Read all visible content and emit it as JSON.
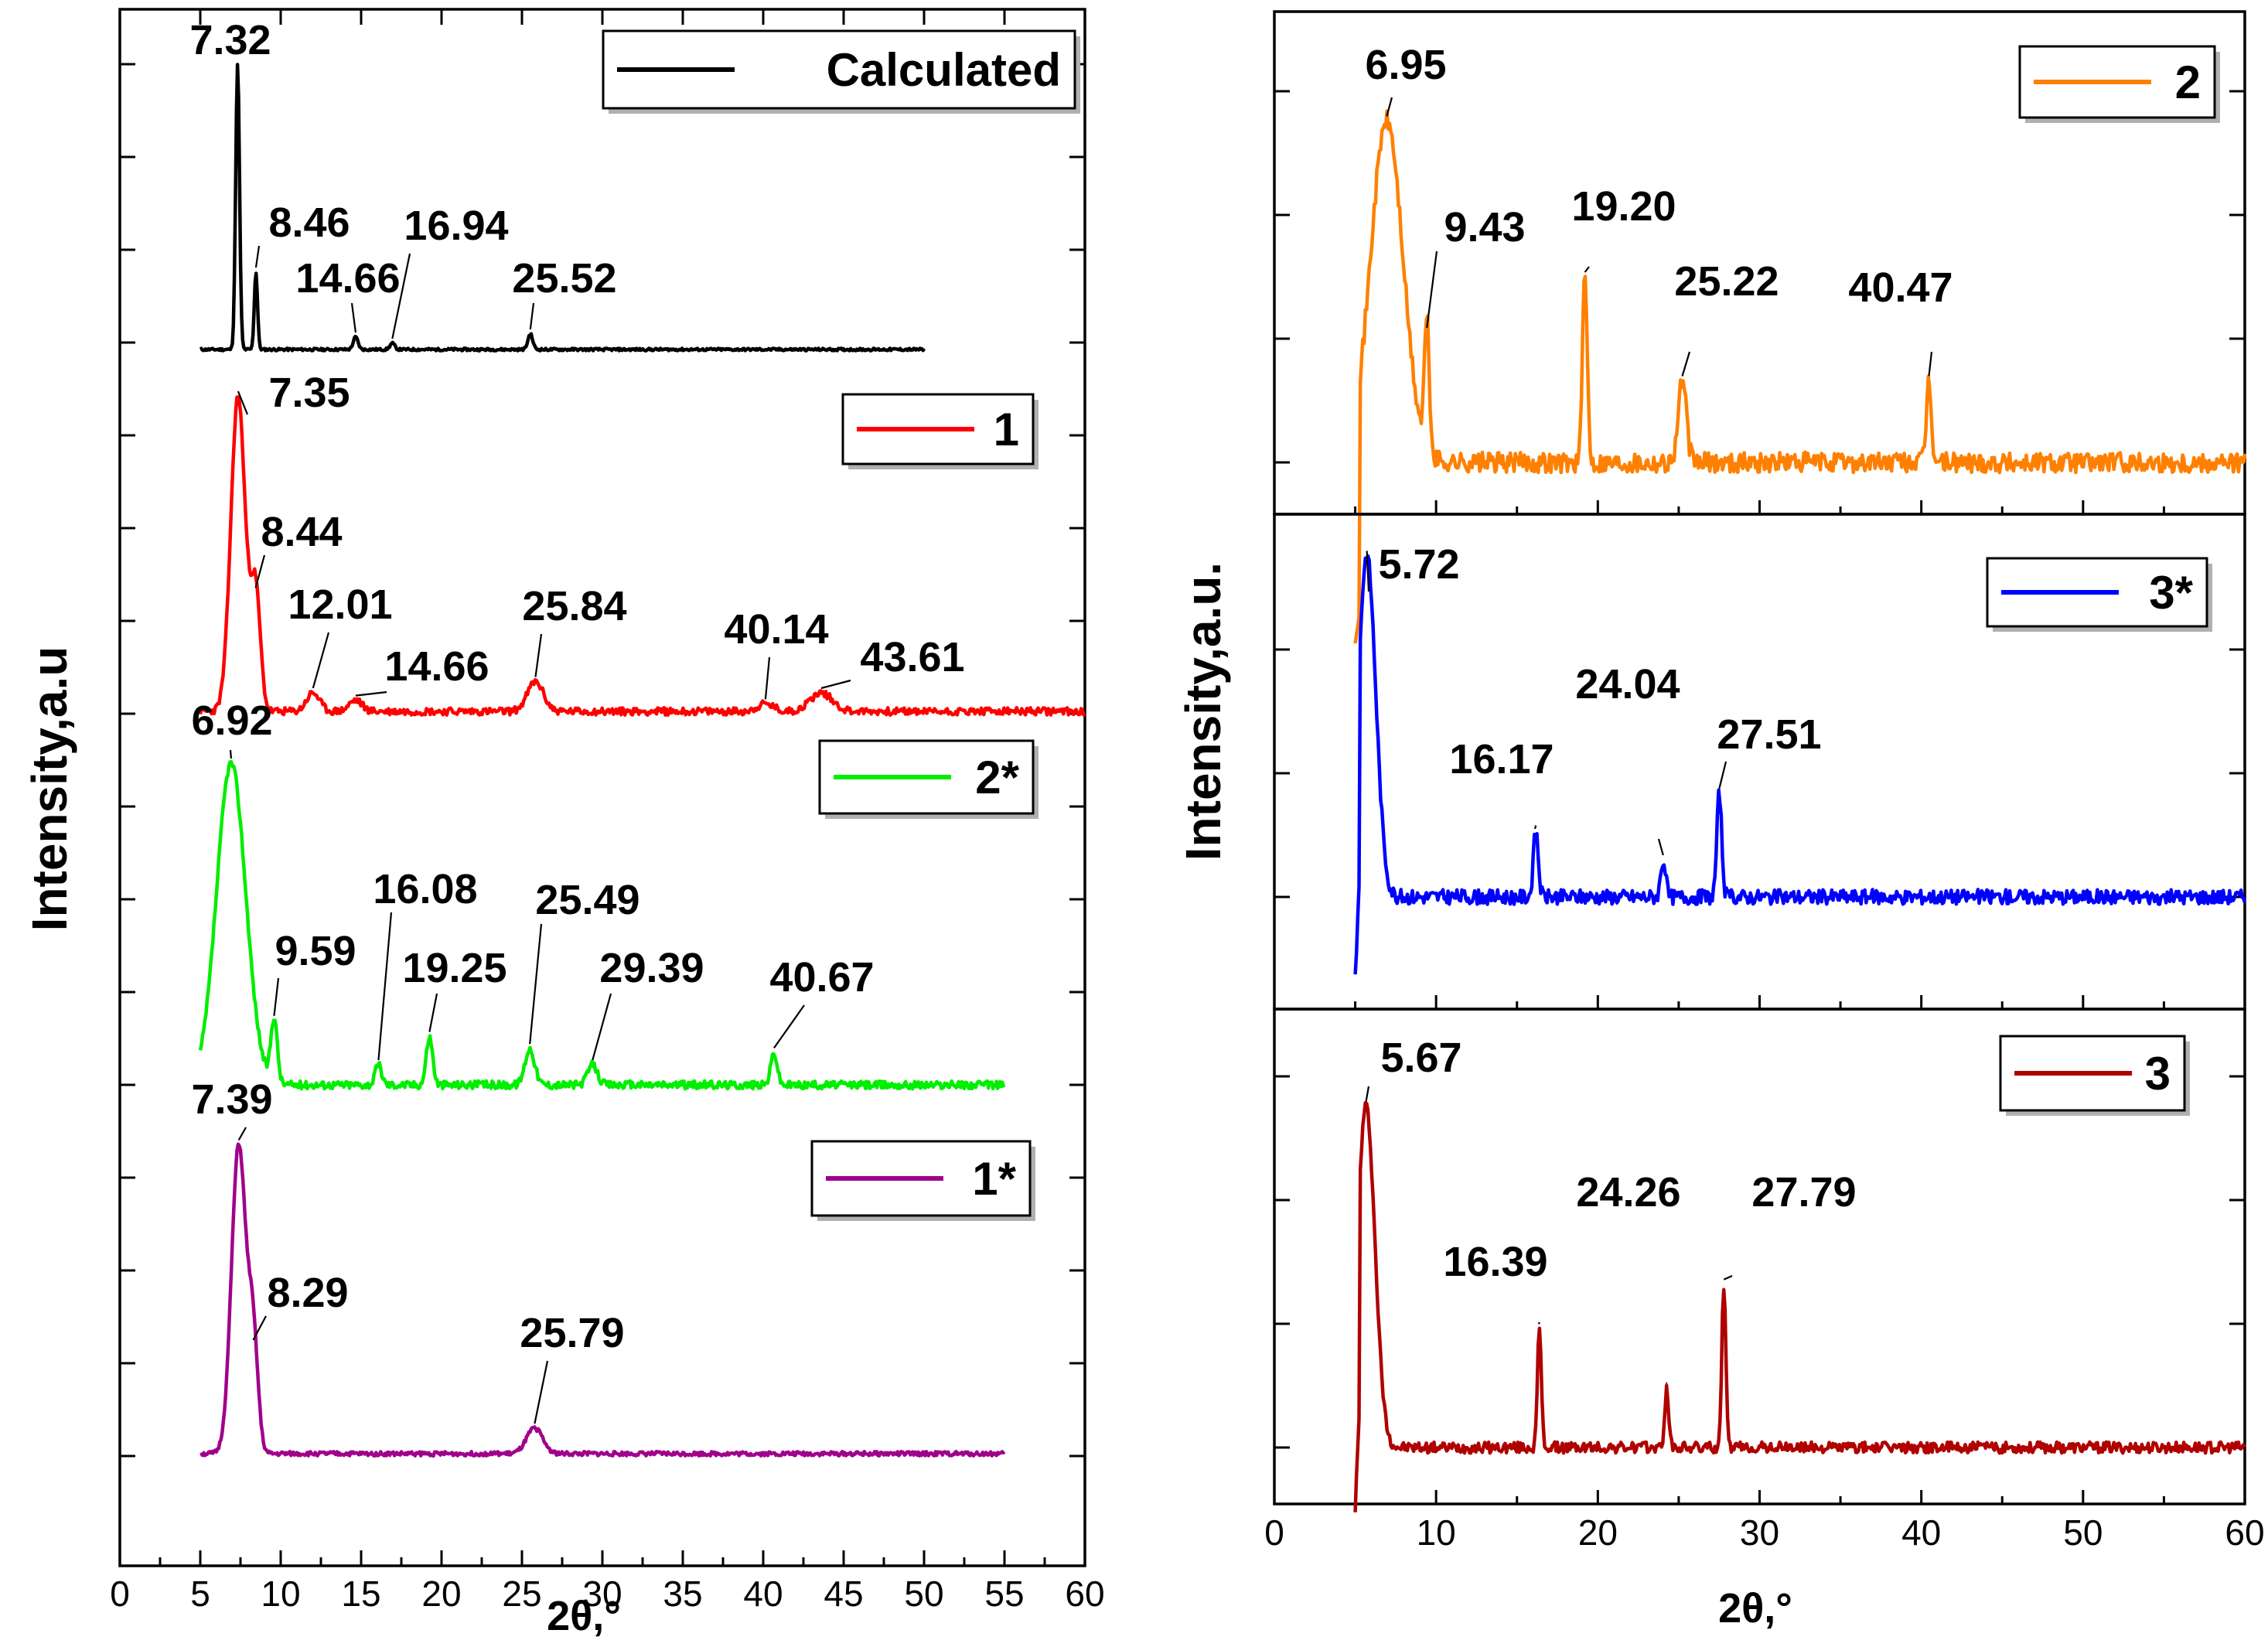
{
  "chart_data": [
    {
      "type": "line",
      "panel": "left",
      "xlabel": "2θ,°",
      "ylabel": "Intensity,a.u",
      "xlim": [
        0,
        60
      ],
      "xticks": [
        0,
        5,
        10,
        15,
        20,
        25,
        30,
        35,
        40,
        45,
        50,
        55,
        60
      ],
      "series": [
        {
          "name": "Calculated",
          "color": "#000000",
          "x_range": [
            5,
            50
          ],
          "baseline_fraction": 0.76,
          "peaks": [
            {
              "x": 7.32,
              "label": "7.32",
              "height": 0.92,
              "width": 0.12
            },
            {
              "x": 8.46,
              "label": "8.46",
              "height": 0.25,
              "width": 0.1
            },
            {
              "x": 14.66,
              "label": "14.66",
              "height": 0.04,
              "width": 0.15
            },
            {
              "x": 16.94,
              "label": "16.94",
              "height": 0.02,
              "width": 0.15
            },
            {
              "x": 25.52,
              "label": "25.52",
              "height": 0.05,
              "width": 0.15
            }
          ]
        },
        {
          "name": "1",
          "color": "#ff0000",
          "x_range": [
            5,
            60
          ],
          "baseline_fraction": 0.56,
          "peaks": [
            {
              "x": 7.35,
              "label": "7.35",
              "height": 0.85,
              "width": 0.45
            },
            {
              "x": 8.44,
              "label": "8.44",
              "height": 0.32,
              "width": 0.3
            },
            {
              "x": 12.01,
              "label": "12.01",
              "height": 0.05,
              "width": 0.4
            },
            {
              "x": 14.66,
              "label": "14.66",
              "height": 0.03,
              "width": 0.4
            },
            {
              "x": 25.84,
              "label": "25.84",
              "height": 0.08,
              "width": 0.5
            },
            {
              "x": 40.14,
              "label": "40.14",
              "height": 0.02,
              "width": 0.5
            },
            {
              "x": 43.61,
              "label": "43.61",
              "height": 0.05,
              "width": 0.7
            }
          ]
        },
        {
          "name": "2*",
          "color": "#00ee00",
          "x_range": [
            5,
            55
          ],
          "baseline_fraction": 0.35,
          "peaks": [
            {
              "x": 6.92,
              "label": "6.92",
              "height": 0.8,
              "width": 0.9
            },
            {
              "x": 9.59,
              "label": "9.59",
              "height": 0.16,
              "width": 0.2
            },
            {
              "x": 16.08,
              "label": "16.08",
              "height": 0.05,
              "width": 0.2
            },
            {
              "x": 19.25,
              "label": "19.25",
              "height": 0.12,
              "width": 0.2
            },
            {
              "x": 25.49,
              "label": "25.49",
              "height": 0.09,
              "width": 0.3
            },
            {
              "x": 29.39,
              "label": "29.39",
              "height": 0.05,
              "width": 0.3
            },
            {
              "x": 40.67,
              "label": "40.67",
              "height": 0.08,
              "width": 0.2
            }
          ]
        },
        {
          "name": "1*",
          "color": "#a0008c",
          "x_range": [
            5,
            55
          ],
          "baseline_fraction": 0.15,
          "peaks": [
            {
              "x": 7.39,
              "label": "7.39",
              "height": 0.85,
              "width": 0.45
            },
            {
              "x": 8.29,
              "label": "8.29",
              "height": 0.3,
              "width": 0.3
            },
            {
              "x": 25.79,
              "label": "25.79",
              "height": 0.07,
              "width": 0.5
            }
          ]
        }
      ]
    },
    {
      "type": "line",
      "panel": "right-top",
      "xlim": [
        0,
        60
      ],
      "ylabel": "Intensity,a.u.",
      "series": [
        {
          "name": "2",
          "color": "#ff8000",
          "x_range": [
            5,
            60
          ],
          "peaks": [
            {
              "x": 6.95,
              "label": "6.95",
              "height": 0.92,
              "width": 1.0
            },
            {
              "x": 9.43,
              "label": "9.43",
              "height": 0.35,
              "width": 0.15
            },
            {
              "x": 19.2,
              "label": "19.20",
              "height": 0.5,
              "width": 0.15
            },
            {
              "x": 25.22,
              "label": "25.22",
              "height": 0.22,
              "width": 0.25
            },
            {
              "x": 40.47,
              "label": "40.47",
              "height": 0.22,
              "width": 0.15
            }
          ]
        }
      ]
    },
    {
      "type": "line",
      "panel": "right-middle",
      "xlim": [
        0,
        60
      ],
      "series": [
        {
          "name": "3*",
          "color": "#0000ff",
          "x_range": [
            5,
            60
          ],
          "peaks": [
            {
              "x": 5.72,
              "label": "5.72",
              "height": 0.92,
              "width": 0.55
            },
            {
              "x": 16.17,
              "label": "16.17",
              "height": 0.18,
              "width": 0.15
            },
            {
              "x": 24.04,
              "label": "24.04",
              "height": 0.1,
              "width": 0.15
            },
            {
              "x": 27.51,
              "label": "27.51",
              "height": 0.28,
              "width": 0.15
            }
          ]
        }
      ]
    },
    {
      "type": "line",
      "panel": "right-bottom",
      "xlabel": "2θ,°",
      "xlim": [
        0,
        60
      ],
      "xticks": [
        0,
        10,
        20,
        30,
        40,
        50,
        60
      ],
      "series": [
        {
          "name": "3",
          "color": "#b00000",
          "x_range": [
            5,
            60
          ],
          "peaks": [
            {
              "x": 5.67,
              "label": "5.67",
              "height": 0.92,
              "width": 0.55
            },
            {
              "x": 16.39,
              "label": "16.39",
              "height": 0.32,
              "width": 0.12
            },
            {
              "x": 24.26,
              "label": "24.26",
              "height": 0.16,
              "width": 0.12
            },
            {
              "x": 27.79,
              "label": "27.79",
              "height": 0.44,
              "width": 0.12
            }
          ]
        }
      ]
    }
  ]
}
